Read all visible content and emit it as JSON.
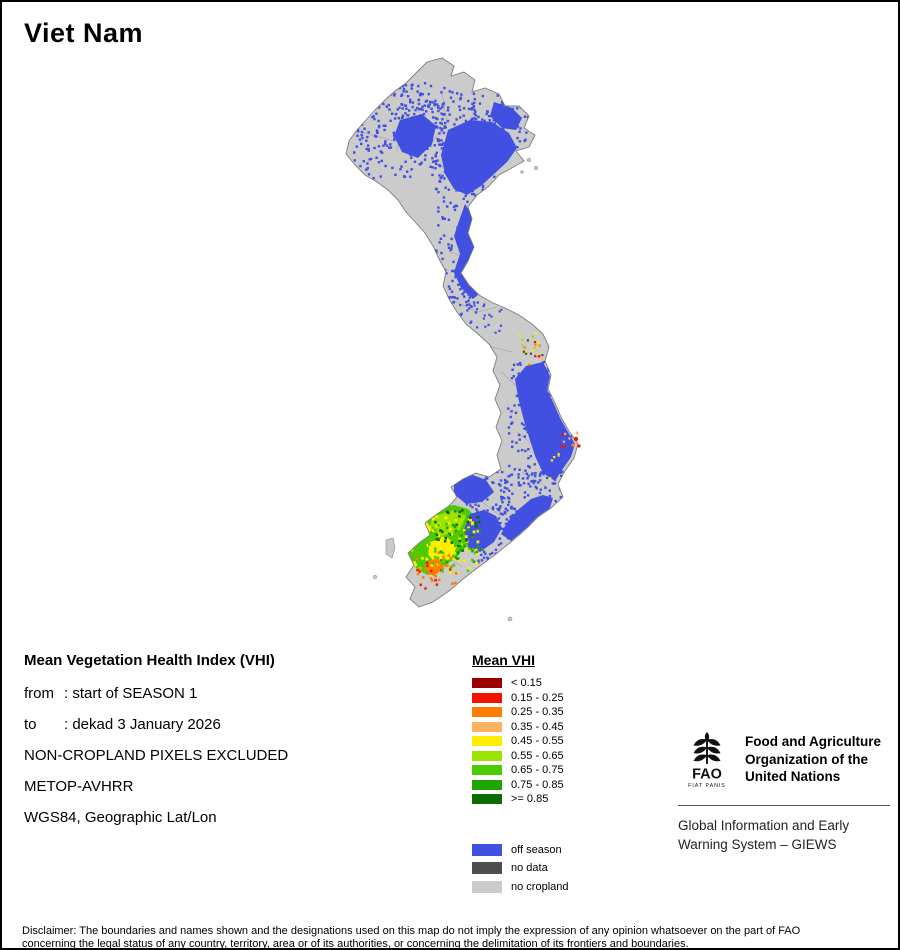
{
  "title": "Viet Nam",
  "info": {
    "heading": "Mean Vegetation Health Index (VHI)",
    "rows": [
      {
        "key": "from",
        "value": ": start of SEASON 1"
      },
      {
        "key": "to",
        "value": ": dekad 3 January 2026"
      }
    ],
    "lines": [
      "NON-CROPLAND PIXELS EXCLUDED",
      "METOP-AVHRR",
      "WGS84, Geographic Lat/Lon"
    ]
  },
  "legend": {
    "title": "Mean VHI",
    "classes": [
      {
        "label": "< 0.15",
        "color": "#9b0000"
      },
      {
        "label": "0.15 - 0.25",
        "color": "#f01500"
      },
      {
        "label": "0.25 - 0.35",
        "color": "#ff7d00"
      },
      {
        "label": "0.35 - 0.45",
        "color": "#ffb25e"
      },
      {
        "label": "0.45 - 0.55",
        "color": "#ffee00"
      },
      {
        "label": "0.55 - 0.65",
        "color": "#9be300"
      },
      {
        "label": "0.65 - 0.75",
        "color": "#4ccb00"
      },
      {
        "label": "0.75 - 0.85",
        "color": "#1fa400"
      },
      {
        "label": ">= 0.85",
        "color": "#0c6e00"
      }
    ],
    "extras": [
      {
        "label": "off season",
        "color": "#4150e0"
      },
      {
        "label": "no data",
        "color": "#4d4d4d"
      },
      {
        "label": "no cropland",
        "color": "#cbcbcb"
      }
    ]
  },
  "fao": {
    "acronym": "FAO",
    "motto": "FIAT PANIS",
    "org_lines": [
      "Food and Agriculture",
      "Organization of the",
      "United Nations"
    ],
    "giews_lines": [
      "Global Information and Early",
      "Warning System – GIEWS"
    ]
  },
  "disclaimer_lines": [
    "Disclaimer: The boundaries and names shown and the designations used on this map do not imply the expression of any opinion whatsoever on the part of FAO",
    "concerning the legal status of any country, territory, area or of its authorities, or concerning the delimitation of its frontiers and boundaries."
  ]
}
